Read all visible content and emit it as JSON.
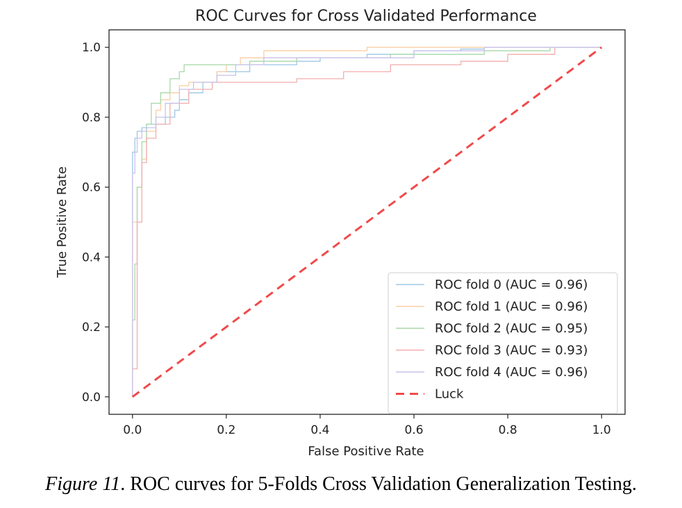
{
  "chart_data": {
    "type": "line",
    "title": "ROC Curves for Cross Validated Performance",
    "xlabel": "False Positive Rate",
    "ylabel": "True Positive Rate",
    "xlim": [
      -0.05,
      1.05
    ],
    "ylim": [
      -0.05,
      1.05
    ],
    "xticks": [
      "0.0",
      "0.2",
      "0.4",
      "0.6",
      "0.8",
      "1.0"
    ],
    "yticks": [
      "0.0",
      "0.2",
      "0.4",
      "0.6",
      "0.8",
      "1.0"
    ],
    "legend_position": "lower-right",
    "series": [
      {
        "name": "ROC fold 0 (AUC = 0.96)",
        "color": "#9ec8e6",
        "style": "solid",
        "x": [
          0.0,
          0.0,
          0.005,
          0.005,
          0.01,
          0.01,
          0.02,
          0.02,
          0.03,
          0.03,
          0.05,
          0.05,
          0.07,
          0.07,
          0.09,
          0.09,
          0.1,
          0.1,
          0.12,
          0.12,
          0.15,
          0.15,
          0.18,
          0.18,
          0.25,
          0.25,
          0.35,
          0.35,
          0.4,
          0.4,
          0.5,
          0.5,
          0.6,
          0.6,
          0.7,
          0.7,
          0.75,
          0.75,
          1.0
        ],
        "y": [
          0.0,
          0.7,
          0.7,
          0.74,
          0.74,
          0.76,
          0.76,
          0.77,
          0.77,
          0.78,
          0.78,
          0.78,
          0.78,
          0.8,
          0.8,
          0.82,
          0.82,
          0.85,
          0.85,
          0.87,
          0.87,
          0.9,
          0.9,
          0.93,
          0.93,
          0.95,
          0.95,
          0.96,
          0.96,
          0.97,
          0.97,
          0.98,
          0.98,
          0.99,
          0.99,
          0.995,
          0.995,
          1.0,
          1.0
        ]
      },
      {
        "name": "ROC fold 1 (AUC = 0.96)",
        "color": "#f9cfa4",
        "style": "solid",
        "x": [
          0.0,
          0.0,
          0.01,
          0.01,
          0.02,
          0.02,
          0.03,
          0.03,
          0.05,
          0.05,
          0.06,
          0.06,
          0.08,
          0.08,
          0.1,
          0.1,
          0.12,
          0.12,
          0.18,
          0.18,
          0.2,
          0.2,
          0.23,
          0.23,
          0.28,
          0.28,
          0.5,
          0.5,
          0.7,
          0.7,
          1.0
        ],
        "y": [
          0.0,
          0.5,
          0.5,
          0.6,
          0.6,
          0.68,
          0.68,
          0.76,
          0.76,
          0.82,
          0.82,
          0.85,
          0.85,
          0.87,
          0.87,
          0.89,
          0.89,
          0.9,
          0.9,
          0.93,
          0.93,
          0.95,
          0.95,
          0.97,
          0.97,
          0.99,
          0.99,
          1.0,
          1.0,
          1.0,
          1.0
        ]
      },
      {
        "name": "ROC fold 2 (AUC = 0.95)",
        "color": "#a8d8a8",
        "style": "solid",
        "x": [
          0.0,
          0.0,
          0.005,
          0.005,
          0.01,
          0.01,
          0.02,
          0.02,
          0.03,
          0.03,
          0.04,
          0.04,
          0.06,
          0.06,
          0.08,
          0.08,
          0.1,
          0.1,
          0.11,
          0.11,
          0.15,
          0.15,
          0.25,
          0.25,
          0.35,
          0.35,
          0.55,
          0.55,
          0.75,
          0.75,
          0.89,
          0.89,
          1.0
        ],
        "y": [
          0.0,
          0.22,
          0.22,
          0.38,
          0.38,
          0.6,
          0.6,
          0.73,
          0.73,
          0.78,
          0.78,
          0.84,
          0.84,
          0.87,
          0.87,
          0.91,
          0.91,
          0.93,
          0.93,
          0.95,
          0.95,
          0.95,
          0.95,
          0.96,
          0.96,
          0.97,
          0.97,
          0.98,
          0.98,
          0.99,
          0.99,
          1.0,
          1.0
        ]
      },
      {
        "name": "ROC fold 3 (AUC = 0.93)",
        "color": "#f2aeae",
        "style": "solid",
        "x": [
          0.0,
          0.0,
          0.01,
          0.01,
          0.02,
          0.02,
          0.03,
          0.03,
          0.05,
          0.05,
          0.08,
          0.08,
          0.12,
          0.12,
          0.17,
          0.17,
          0.35,
          0.35,
          0.45,
          0.45,
          0.55,
          0.55,
          0.7,
          0.7,
          0.8,
          0.8,
          0.9,
          0.9,
          1.0
        ],
        "y": [
          0.0,
          0.08,
          0.08,
          0.5,
          0.5,
          0.67,
          0.67,
          0.74,
          0.74,
          0.78,
          0.78,
          0.84,
          0.84,
          0.88,
          0.88,
          0.9,
          0.9,
          0.91,
          0.91,
          0.93,
          0.93,
          0.95,
          0.95,
          0.96,
          0.96,
          0.98,
          0.98,
          1.0,
          1.0
        ]
      },
      {
        "name": "ROC fold 4 (AUC = 0.96)",
        "color": "#c9c2ea",
        "style": "solid",
        "x": [
          0.0,
          0.0,
          0.005,
          0.005,
          0.01,
          0.01,
          0.02,
          0.02,
          0.03,
          0.03,
          0.05,
          0.05,
          0.07,
          0.07,
          0.1,
          0.1,
          0.13,
          0.13,
          0.18,
          0.18,
          0.22,
          0.22,
          0.28,
          0.28,
          0.6,
          0.6,
          0.75,
          0.75,
          1.0
        ],
        "y": [
          0.0,
          0.64,
          0.64,
          0.7,
          0.7,
          0.74,
          0.74,
          0.76,
          0.76,
          0.77,
          0.77,
          0.8,
          0.8,
          0.84,
          0.84,
          0.88,
          0.88,
          0.9,
          0.9,
          0.92,
          0.92,
          0.95,
          0.95,
          0.97,
          0.97,
          0.99,
          0.99,
          1.0,
          1.0
        ]
      },
      {
        "name": "Luck",
        "color": "#f04a4a",
        "style": "dashed",
        "x": [
          0.0,
          1.0
        ],
        "y": [
          0.0,
          1.0
        ]
      }
    ]
  },
  "caption": {
    "label": "Figure 11",
    "text": ". ROC curves for 5-Folds Cross Validation Generalization Testing."
  }
}
